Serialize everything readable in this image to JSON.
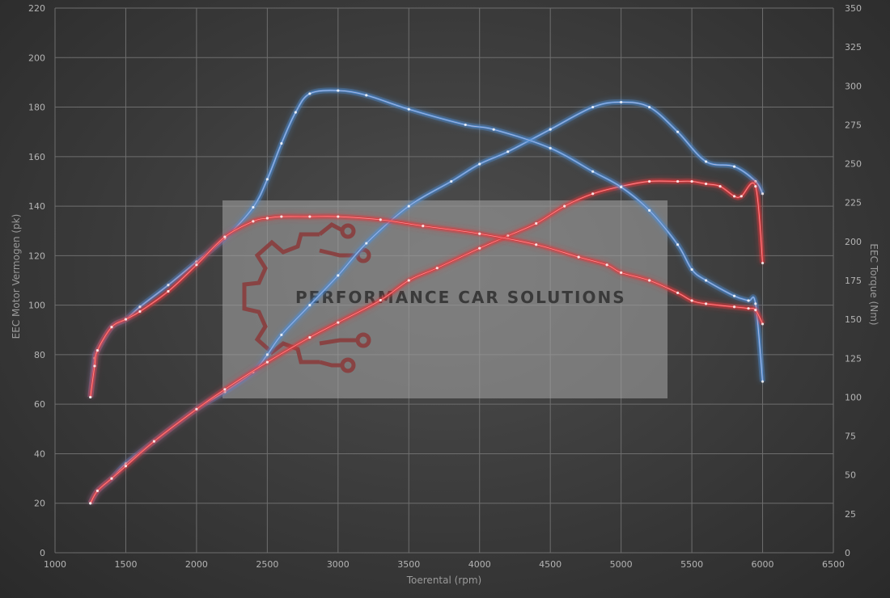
{
  "chart_data": {
    "type": "line",
    "xlabel": "Toerental (rpm)",
    "ylabel_left": "EEC Motor Vermogen (pk)",
    "ylabel_right": "EEC Torque (Nm)",
    "xlim": [
      1000,
      6500
    ],
    "ylim_left": [
      0,
      220
    ],
    "ylim_right": [
      0,
      350
    ],
    "x_ticks": [
      1000,
      1500,
      2000,
      2500,
      3000,
      3500,
      4000,
      4500,
      5000,
      5500,
      6000,
      6500
    ],
    "y_ticks_left": [
      0,
      20,
      40,
      60,
      80,
      100,
      120,
      140,
      160,
      180,
      200,
      220
    ],
    "y_ticks_right": [
      0,
      25,
      50,
      75,
      100,
      125,
      150,
      175,
      200,
      225,
      250,
      275,
      300,
      325,
      350
    ],
    "grid": true,
    "series": [
      {
        "axis": "left",
        "color": "#4f8fd8",
        "x": [
          1250,
          1300,
          1400,
          1500,
          1700,
          2000,
          2200,
          2400,
          2500,
          2600,
          2800,
          3000,
          3200,
          3500,
          3800,
          4000,
          4200,
          4500,
          4800,
          5000,
          5200,
          5400,
          5600,
          5800,
          5950,
          6000
        ],
        "y": [
          20,
          25,
          30,
          36,
          45,
          58,
          65,
          73,
          80,
          88,
          100,
          112,
          125,
          140,
          150,
          157,
          162,
          171,
          180,
          182,
          180,
          170,
          158,
          156,
          150,
          145
        ]
      },
      {
        "axis": "left",
        "color": "#e0383e",
        "x": [
          1250,
          1300,
          1400,
          1500,
          1700,
          2000,
          2200,
          2500,
          2800,
          3000,
          3300,
          3500,
          3700,
          4000,
          4200,
          4400,
          4600,
          4800,
          5000,
          5200,
          5400,
          5500,
          5600,
          5700,
          5800,
          5850,
          5950,
          6000
        ],
        "y": [
          20,
          25,
          30,
          35,
          45,
          58,
          66,
          77,
          87,
          93,
          102,
          110,
          115,
          123,
          128,
          133,
          140,
          145,
          148,
          150,
          150,
          150,
          149,
          148,
          144,
          144,
          148,
          117
        ]
      },
      {
        "axis": "right",
        "color": "#4f8fd8",
        "x": [
          1250,
          1280,
          1300,
          1400,
          1500,
          1600,
          1800,
          2000,
          2200,
          2400,
          2500,
          2600,
          2700,
          2800,
          3000,
          3200,
          3500,
          3900,
          4100,
          4500,
          4800,
          5000,
          5200,
          5400,
          5500,
          5600,
          5800,
          5900,
          5950,
          6000
        ],
        "y": [
          100,
          125,
          130,
          145,
          150,
          158,
          172,
          187,
          202,
          222,
          240,
          263,
          283,
          295,
          297,
          294,
          285,
          275,
          272,
          260,
          245,
          235,
          220,
          198,
          182,
          175,
          165,
          162,
          160,
          110
        ]
      },
      {
        "axis": "right",
        "color": "#e0383e",
        "x": [
          1250,
          1280,
          1300,
          1400,
          1500,
          1600,
          1800,
          2000,
          2200,
          2400,
          2500,
          2600,
          2800,
          3000,
          3300,
          3600,
          4000,
          4400,
          4700,
          4900,
          5000,
          5200,
          5400,
          5500,
          5600,
          5800,
          5900,
          5950,
          6000
        ],
        "y": [
          100,
          120,
          130,
          145,
          150,
          155,
          168,
          185,
          203,
          213,
          215,
          216,
          216,
          216,
          214,
          210,
          205,
          198,
          190,
          185,
          180,
          175,
          167,
          162,
          160,
          158,
          157,
          156,
          147
        ]
      }
    ]
  },
  "watermark": {
    "text": "PERFORMANCE CAR SOLUTIONS",
    "icon": "gear-circuit-logo-icon",
    "color": "#8b3a3a"
  }
}
